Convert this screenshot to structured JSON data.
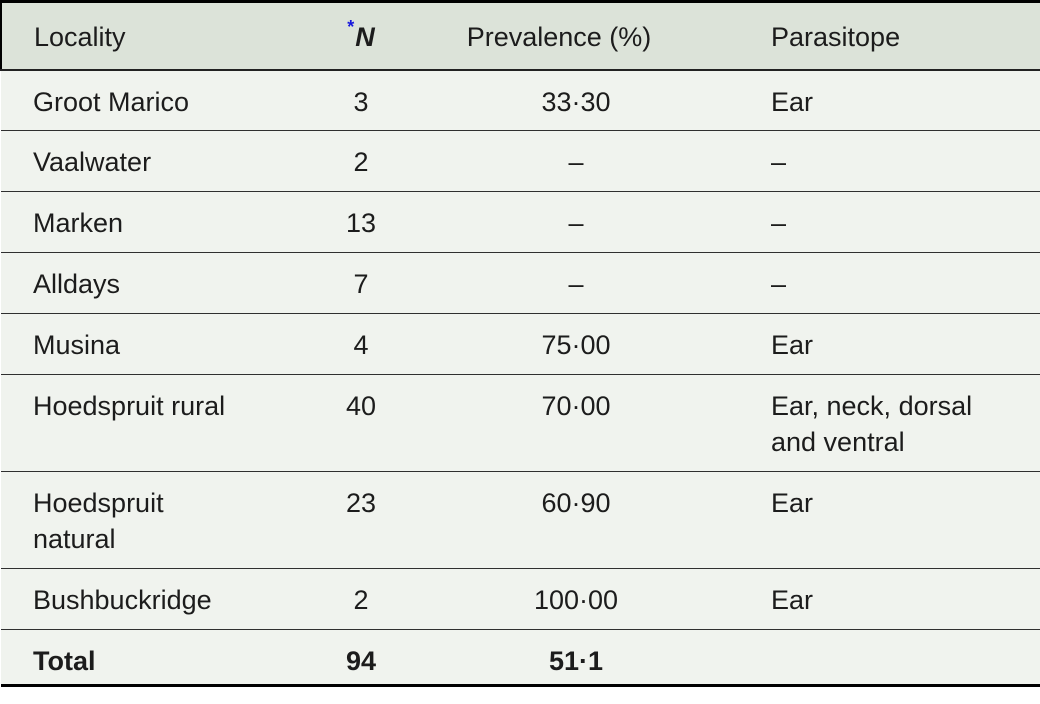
{
  "colors": {
    "header_bg": "#dce3d9",
    "row_bg": "#f0f3ee",
    "text": "#1c1c1c",
    "border": "#000000",
    "separator": "#2f2f2f",
    "footnote_marker": "#1616dd"
  },
  "table": {
    "columns": [
      {
        "label": "Locality"
      },
      {
        "label": "N",
        "marker": "*"
      },
      {
        "label": "Prevalence (%)"
      },
      {
        "label": "Parasitope"
      }
    ],
    "rows": [
      {
        "locality": "Groot Marico",
        "n": "3",
        "prevalence": "33·30",
        "parasitope": "Ear"
      },
      {
        "locality": "Vaalwater",
        "n": "2",
        "prevalence": "–",
        "parasitope": "–"
      },
      {
        "locality": "Marken",
        "n": "13",
        "prevalence": "–",
        "parasitope": "–"
      },
      {
        "locality": "Alldays",
        "n": "7",
        "prevalence": "–",
        "parasitope": "–"
      },
      {
        "locality": "Musina",
        "n": "4",
        "prevalence": "75·00",
        "parasitope": "Ear"
      },
      {
        "locality": "Hoedspruit rural",
        "n": "40",
        "prevalence": "70·00",
        "parasitope": "Ear, neck, dorsal\nand ventral"
      },
      {
        "locality": "Hoedspruit\nnatural",
        "n": "23",
        "prevalence": "60·90",
        "parasitope": "Ear"
      },
      {
        "locality": "Bushbuckridge",
        "n": "2",
        "prevalence": "100·00",
        "parasitope": "Ear"
      }
    ],
    "total": {
      "label": "Total",
      "n": "94",
      "prevalence": "51·1",
      "parasitope": ""
    }
  },
  "chart_data": {
    "type": "table",
    "title": "",
    "columns": [
      "Locality",
      "*N",
      "Prevalence (%)",
      "Parasitope"
    ],
    "rows": [
      [
        "Groot Marico",
        3,
        33.3,
        "Ear"
      ],
      [
        "Vaalwater",
        2,
        null,
        null
      ],
      [
        "Marken",
        13,
        null,
        null
      ],
      [
        "Alldays",
        7,
        null,
        null
      ],
      [
        "Musina",
        4,
        75.0,
        "Ear"
      ],
      [
        "Hoedspruit rural",
        40,
        70.0,
        "Ear, neck, dorsal and ventral"
      ],
      [
        "Hoedspruit natural",
        23,
        60.9,
        "Ear"
      ],
      [
        "Bushbuckridge",
        2,
        100.0,
        "Ear"
      ],
      [
        "Total",
        94,
        51.1,
        ""
      ]
    ]
  }
}
